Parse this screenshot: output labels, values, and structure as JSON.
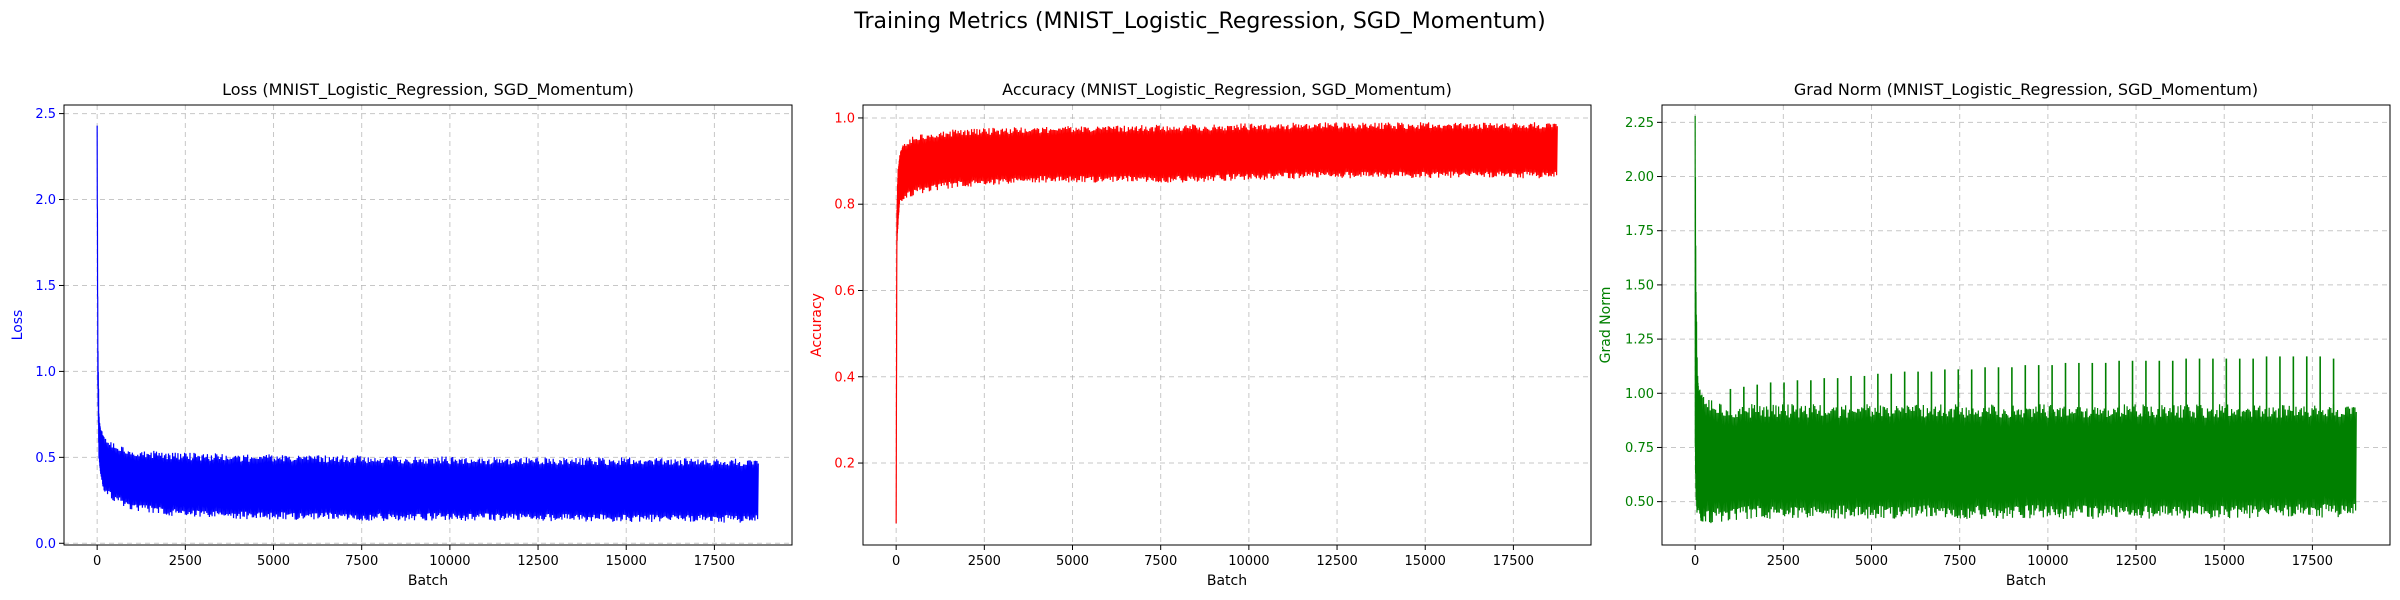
{
  "figure": {
    "suptitle": "Training Metrics (MNIST_Logistic_Regression, SGD_Momentum)"
  },
  "chart_data": [
    {
      "type": "line",
      "title": "Loss (MNIST_Logistic_Regression, SGD_Momentum)",
      "xlabel": "Batch",
      "ylabel": "Loss",
      "color": "#0000ff",
      "grid": true,
      "xlim": [
        -940,
        19700
      ],
      "ylim": [
        -0.01,
        2.55
      ],
      "xticks": [
        0,
        2500,
        5000,
        7500,
        10000,
        12500,
        15000,
        17500
      ],
      "yticks": [
        0.0,
        0.5,
        1.0,
        1.5,
        2.0,
        2.5
      ],
      "ytick_labels": [
        "0.0",
        "0.5",
        "1.0",
        "1.5",
        "2.0",
        "2.5"
      ],
      "envelope": {
        "x": [
          0,
          20,
          50,
          100,
          200,
          500,
          1000,
          2000,
          4000,
          8000,
          12000,
          16000,
          18750
        ],
        "upper": [
          2.43,
          1.2,
          0.75,
          0.68,
          0.62,
          0.58,
          0.55,
          0.53,
          0.52,
          0.51,
          0.5,
          0.5,
          0.49
        ],
        "lower": [
          2.2,
          0.9,
          0.5,
          0.38,
          0.3,
          0.24,
          0.19,
          0.16,
          0.14,
          0.13,
          0.13,
          0.12,
          0.12
        ]
      }
    },
    {
      "type": "line",
      "title": "Accuracy (MNIST_Logistic_Regression, SGD_Momentum)",
      "xlabel": "Batch",
      "ylabel": "Accuracy",
      "color": "#ff0000",
      "grid": true,
      "xlim": [
        -940,
        19700
      ],
      "ylim": [
        0.01,
        1.03
      ],
      "xticks": [
        0,
        2500,
        5000,
        7500,
        10000,
        12500,
        15000,
        17500
      ],
      "yticks": [
        0.2,
        0.4,
        0.6,
        0.8,
        1.0
      ],
      "ytick_labels": [
        "0.2",
        "0.4",
        "0.6",
        "0.8",
        "1.0"
      ],
      "envelope": {
        "x": [
          0,
          20,
          50,
          100,
          200,
          500,
          1000,
          2000,
          4000,
          8000,
          12000,
          16000,
          18750
        ],
        "upper": [
          0.06,
          0.78,
          0.88,
          0.92,
          0.94,
          0.96,
          0.97,
          0.975,
          0.98,
          0.985,
          0.99,
          0.99,
          0.99
        ],
        "lower": [
          0.05,
          0.7,
          0.75,
          0.8,
          0.81,
          0.82,
          0.83,
          0.84,
          0.85,
          0.85,
          0.86,
          0.86,
          0.86
        ]
      }
    },
    {
      "type": "line",
      "title": "Grad Norm (MNIST_Logistic_Regression, SGD_Momentum)",
      "xlabel": "Batch",
      "ylabel": "Grad Norm",
      "color": "#008000",
      "grid": true,
      "xlim": [
        -940,
        19700
      ],
      "ylim": [
        0.3,
        2.33
      ],
      "xticks": [
        0,
        2500,
        5000,
        7500,
        10000,
        12500,
        15000,
        17500
      ],
      "yticks": [
        0.5,
        0.75,
        1.0,
        1.25,
        1.5,
        1.75,
        2.0,
        2.25
      ],
      "ytick_labels": [
        "0.50",
        "0.75",
        "1.00",
        "1.25",
        "1.50",
        "1.75",
        "2.00",
        "2.25"
      ],
      "envelope": {
        "x": [
          0,
          20,
          50,
          100,
          200,
          500,
          1000,
          2000,
          4000,
          8000,
          12000,
          16000,
          18750
        ],
        "upper": [
          2.28,
          1.6,
          1.2,
          1.05,
          1.0,
          0.97,
          0.95,
          0.95,
          0.95,
          0.95,
          0.95,
          0.95,
          0.95
        ],
        "lower": [
          0.6,
          0.5,
          0.45,
          0.42,
          0.4,
          0.4,
          0.41,
          0.42,
          0.42,
          0.42,
          0.42,
          0.42,
          0.43
        ]
      },
      "spikes": [
        {
          "x": 1000,
          "y": 1.02
        },
        {
          "x": 1380,
          "y": 1.03
        },
        {
          "x": 1760,
          "y": 1.04
        },
        {
          "x": 2140,
          "y": 1.05
        },
        {
          "x": 2520,
          "y": 1.05
        },
        {
          "x": 2900,
          "y": 1.06
        },
        {
          "x": 3280,
          "y": 1.06
        },
        {
          "x": 3660,
          "y": 1.07
        },
        {
          "x": 4040,
          "y": 1.07
        },
        {
          "x": 4420,
          "y": 1.08
        },
        {
          "x": 4800,
          "y": 1.08
        },
        {
          "x": 5180,
          "y": 1.09
        },
        {
          "x": 5560,
          "y": 1.09
        },
        {
          "x": 5940,
          "y": 1.1
        },
        {
          "x": 6320,
          "y": 1.1
        },
        {
          "x": 6700,
          "y": 1.1
        },
        {
          "x": 7080,
          "y": 1.11
        },
        {
          "x": 7460,
          "y": 1.11
        },
        {
          "x": 7840,
          "y": 1.11
        },
        {
          "x": 8220,
          "y": 1.12
        },
        {
          "x": 8600,
          "y": 1.12
        },
        {
          "x": 8980,
          "y": 1.12
        },
        {
          "x": 9360,
          "y": 1.13
        },
        {
          "x": 9740,
          "y": 1.13
        },
        {
          "x": 10120,
          "y": 1.13
        },
        {
          "x": 10500,
          "y": 1.14
        },
        {
          "x": 10880,
          "y": 1.14
        },
        {
          "x": 11260,
          "y": 1.14
        },
        {
          "x": 11640,
          "y": 1.14
        },
        {
          "x": 12020,
          "y": 1.15
        },
        {
          "x": 12400,
          "y": 1.15
        },
        {
          "x": 12780,
          "y": 1.15
        },
        {
          "x": 13160,
          "y": 1.15
        },
        {
          "x": 13540,
          "y": 1.15
        },
        {
          "x": 13920,
          "y": 1.16
        },
        {
          "x": 14300,
          "y": 1.16
        },
        {
          "x": 14680,
          "y": 1.16
        },
        {
          "x": 15060,
          "y": 1.16
        },
        {
          "x": 15440,
          "y": 1.16
        },
        {
          "x": 15820,
          "y": 1.16
        },
        {
          "x": 16200,
          "y": 1.17
        },
        {
          "x": 16580,
          "y": 1.17
        },
        {
          "x": 16960,
          "y": 1.17
        },
        {
          "x": 17340,
          "y": 1.17
        },
        {
          "x": 17720,
          "y": 1.17
        },
        {
          "x": 18100,
          "y": 1.16
        }
      ]
    }
  ]
}
